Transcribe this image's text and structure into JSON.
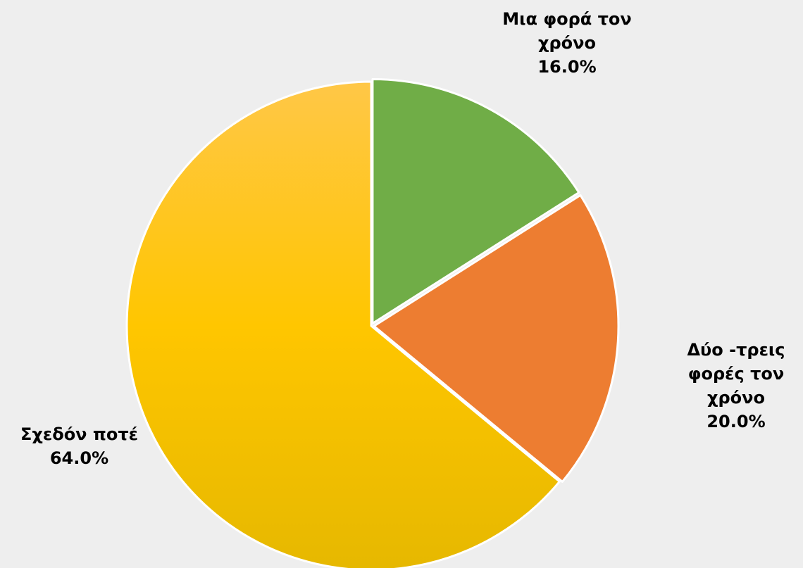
{
  "chart_data": {
    "type": "pie",
    "title": "",
    "start_angle_deg": 0,
    "direction": "clockwise",
    "slices": [
      {
        "name": "Μια φορά τον χρόνο",
        "label_lines": [
          "Μια φορά τον",
          "χρόνο"
        ],
        "value": 16.0,
        "value_label": "16.0%",
        "color": "#70AD47",
        "exploded": true
      },
      {
        "name": "Δύο -τρεις φορές τον χρόνο",
        "label_lines": [
          "Δύο -τρεις",
          "φορές τον",
          "χρόνο"
        ],
        "value": 20.0,
        "value_label": "20.0%",
        "color": "#ED7D31",
        "exploded": true
      },
      {
        "name": "Σχεδόν ποτέ",
        "label_lines": [
          "Σχεδόν ποτέ"
        ],
        "value": 64.0,
        "value_label": "64.0%",
        "color_top": "#FFC747",
        "color_mid": "#FFC600",
        "color_bottom": "#E6B800",
        "exploded": false
      }
    ],
    "legend": "none",
    "border_color": "#ffffff"
  }
}
